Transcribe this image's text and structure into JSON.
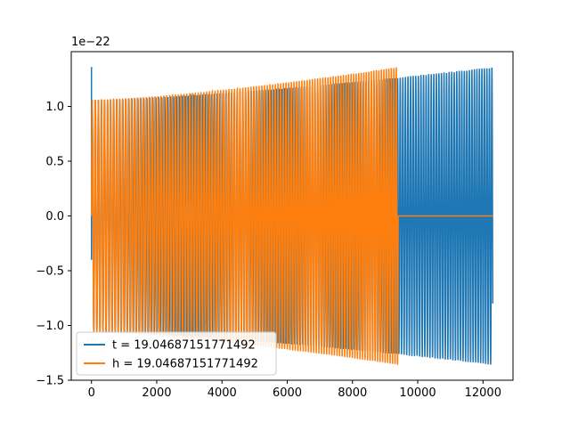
{
  "chart_data": {
    "type": "line",
    "title": "",
    "xlabel": "",
    "ylabel": "",
    "y_offset_label": "1e−22",
    "y_scale": 1e-22,
    "xlim": [
      -620,
      12920
    ],
    "ylim": [
      -1.5,
      1.5
    ],
    "x_ticks": [
      0,
      2000,
      4000,
      6000,
      8000,
      10000,
      12000
    ],
    "x_tick_labels": [
      "0",
      "2000",
      "4000",
      "6000",
      "8000",
      "10000",
      "12000"
    ],
    "y_ticks": [
      -1.5,
      -1.0,
      -0.5,
      0.0,
      0.5,
      1.0
    ],
    "y_tick_labels": [
      "−1.5",
      "−1.0",
      "−0.5",
      "0.0",
      "0.5",
      "1.0"
    ],
    "grid": false,
    "legend": "lower-left",
    "series": [
      {
        "name": "t = 19.04687151771492",
        "color": "#1f77b4",
        "signal": "oscillating chirp waveform",
        "x_start": 0,
        "x_end": 12300,
        "envelope_start": 1.06,
        "envelope_end": 1.36,
        "initial_spike": 1.36,
        "cycles": 130
      },
      {
        "name": "h = 19.04687151771492",
        "color": "#ff7f0e",
        "signal": "oscillating chirp waveform, then zero",
        "x_start": 0,
        "x_end": 9400,
        "envelope_start": 1.06,
        "envelope_end": 1.36,
        "cycles": 100,
        "after_end_value": 0.0,
        "zero_until": 12300
      }
    ]
  }
}
